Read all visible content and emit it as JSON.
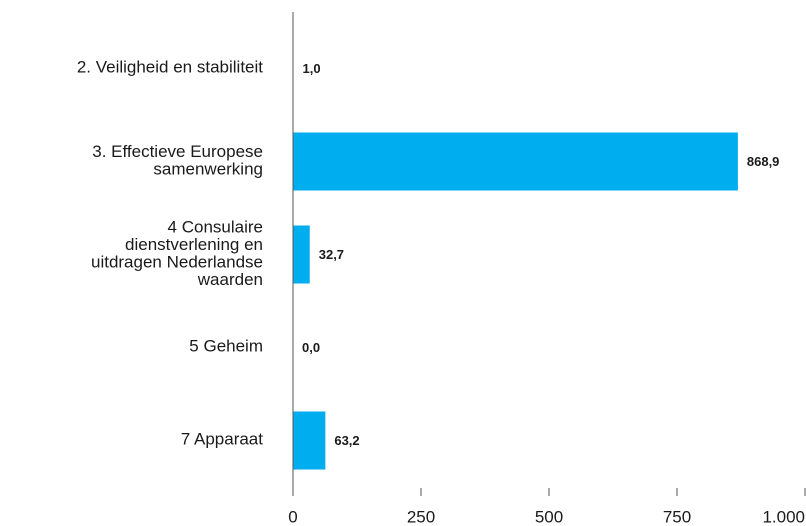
{
  "chart_data": {
    "type": "bar",
    "orientation": "horizontal",
    "categories": [
      [
        "2. Veiligheid en stabiliteit"
      ],
      [
        "3. Effectieve Europese",
        "samenwerking"
      ],
      [
        "4 Consulaire",
        "dienstverlening en",
        "uitdragen Nederlandse",
        "waarden"
      ],
      [
        "5 Geheim"
      ],
      [
        "7 Apparaat"
      ]
    ],
    "values": [
      1.0,
      868.9,
      32.7,
      0.0,
      63.2
    ],
    "value_labels": [
      "1,0",
      "868,9",
      "32,7",
      "0,0",
      "63,2"
    ],
    "color": "#00aeef",
    "xlim": [
      0,
      1000
    ],
    "xticks": [
      0,
      250,
      500,
      750,
      {
        "value": 1000,
        "label": "1.000"
      }
    ],
    "grid": false
  }
}
